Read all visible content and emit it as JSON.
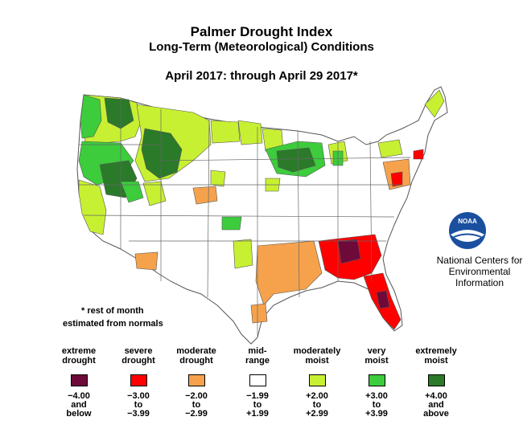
{
  "title": "Palmer Drought Index",
  "subtitle": "Long-Term (Meteorological) Conditions",
  "period": "April 2017: through April 29 2017*",
  "note": {
    "line1": "* rest of month",
    "line2": "estimated from normals"
  },
  "organization": {
    "logo_text": "NOAA",
    "line1": "National Centers for",
    "line2": "Environmental",
    "line3": "Information"
  },
  "legend": [
    {
      "line1": "extreme",
      "line2": "drought",
      "r1": "−4.00",
      "r2": "and",
      "r3": "below",
      "color": "#6d0a3a"
    },
    {
      "line1": "severe",
      "line2": "drought",
      "r1": "−3.00",
      "r2": "to",
      "r3": "−3.99",
      "color": "#ff0000"
    },
    {
      "line1": "moderate",
      "line2": "drought",
      "r1": "−2.00",
      "r2": "to",
      "r3": "−2.99",
      "color": "#f6a24c"
    },
    {
      "line1": "mid-",
      "line2": "range",
      "r1": "−1.99",
      "r2": "to",
      "r3": "+1.99",
      "color": "#ffffff"
    },
    {
      "line1": "moderately",
      "line2": "moist",
      "r1": "+2.00",
      "r2": "to",
      "r3": "+2.99",
      "color": "#c8f032"
    },
    {
      "line1": "very",
      "line2": "moist",
      "r1": "+3.00",
      "r2": "to",
      "r3": "+3.99",
      "color": "#3ccc3c"
    },
    {
      "line1": "extremely",
      "line2": "moist",
      "r1": "+4.00",
      "r2": "and",
      "r3": "above",
      "color": "#2a7a2a"
    }
  ]
}
